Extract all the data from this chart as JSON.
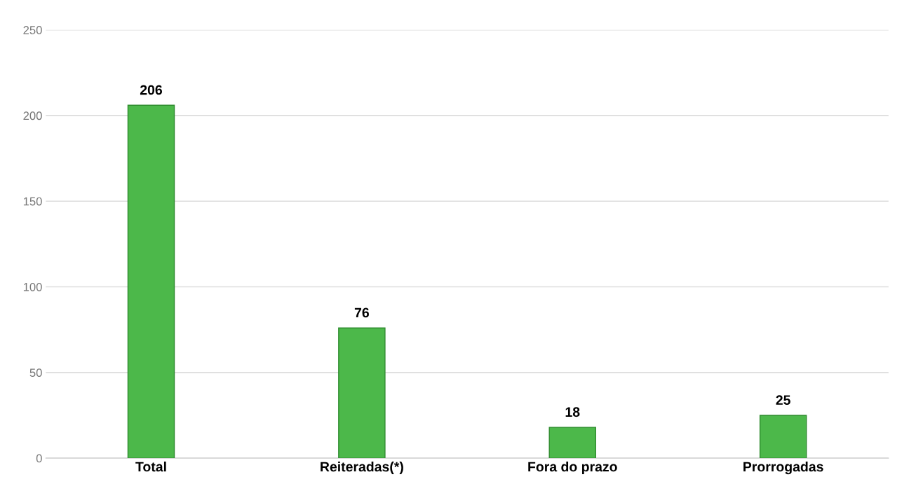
{
  "chart_data": {
    "type": "bar",
    "categories": [
      "Total",
      "Reiteradas(*)",
      "Fora do prazo",
      "Prorrogadas"
    ],
    "values": [
      206,
      76,
      18,
      25
    ],
    "color": "#4cb84a",
    "ylim": [
      0,
      250
    ],
    "yticks": [
      0,
      50,
      100,
      150,
      200,
      250
    ],
    "grid": "y",
    "data_labels": true
  }
}
